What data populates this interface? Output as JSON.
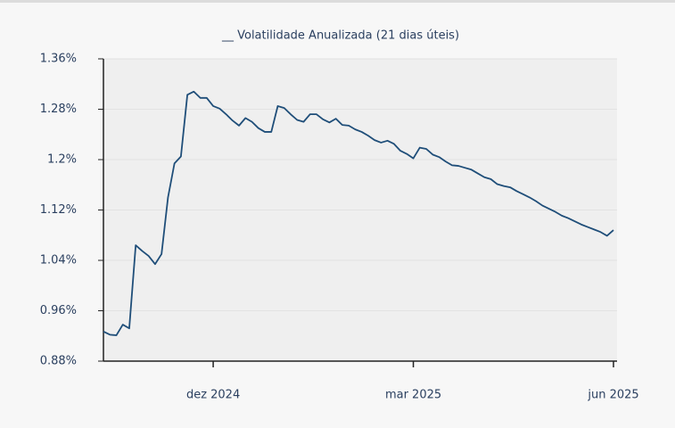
{
  "chart_data": {
    "type": "line",
    "title": "__ Volatilidade Anualizada (21 dias úteis)",
    "categories": [
      null,
      null,
      null,
      null,
      null,
      null,
      null,
      null,
      null,
      null,
      null,
      null,
      null,
      null,
      null,
      null,
      null,
      "dez 2024",
      null,
      null,
      null,
      null,
      null,
      null,
      null,
      null,
      null,
      null,
      null,
      null,
      null,
      null,
      null,
      null,
      null,
      null,
      null,
      null,
      null,
      null,
      null,
      null,
      null,
      null,
      null,
      null,
      null,
      null,
      "mar 2025",
      null,
      null,
      null,
      null,
      null,
      null,
      null,
      null,
      null,
      null,
      null,
      null,
      null,
      null,
      null,
      null,
      null,
      null,
      null,
      null,
      null,
      null,
      null,
      null,
      null,
      null,
      null,
      null,
      null,
      null,
      "jun 2025"
    ],
    "series": [
      {
        "name": "Volatilidade Anualizada (21 dias úteis)",
        "color": "#1f4e79",
        "values": [
          0.927,
          0.922,
          0.921,
          0.938,
          0.932,
          1.064,
          1.055,
          1.047,
          1.034,
          1.05,
          1.14,
          1.194,
          1.205,
          1.303,
          1.308,
          1.298,
          1.298,
          1.285,
          1.281,
          1.272,
          1.262,
          1.254,
          1.266,
          1.26,
          1.25,
          1.244,
          1.244,
          1.285,
          1.282,
          1.272,
          1.263,
          1.26,
          1.272,
          1.272,
          1.264,
          1.259,
          1.265,
          1.255,
          1.254,
          1.248,
          1.244,
          1.238,
          1.231,
          1.227,
          1.23,
          1.225,
          1.214,
          1.209,
          1.202,
          1.219,
          1.217,
          1.208,
          1.204,
          1.197,
          1.191,
          1.19,
          1.187,
          1.184,
          1.178,
          1.172,
          1.169,
          1.161,
          1.158,
          1.156,
          1.15,
          1.145,
          1.14,
          1.134,
          1.127,
          1.122,
          1.117,
          1.111,
          1.107,
          1.102,
          1.097,
          1.093,
          1.089,
          1.085,
          1.079,
          1.088
        ]
      }
    ],
    "ylim": [
      0.88,
      1.36
    ],
    "yticks": [
      {
        "value": 0.88,
        "label": "0.88%"
      },
      {
        "value": 0.96,
        "label": "0.96%"
      },
      {
        "value": 1.04,
        "label": "1.04%"
      },
      {
        "value": 1.12,
        "label": "1.12%"
      },
      {
        "value": 1.2,
        "label": "1.2%"
      },
      {
        "value": 1.28,
        "label": "1.28%"
      },
      {
        "value": 1.36,
        "label": "1.36%"
      }
    ],
    "grid": true
  }
}
